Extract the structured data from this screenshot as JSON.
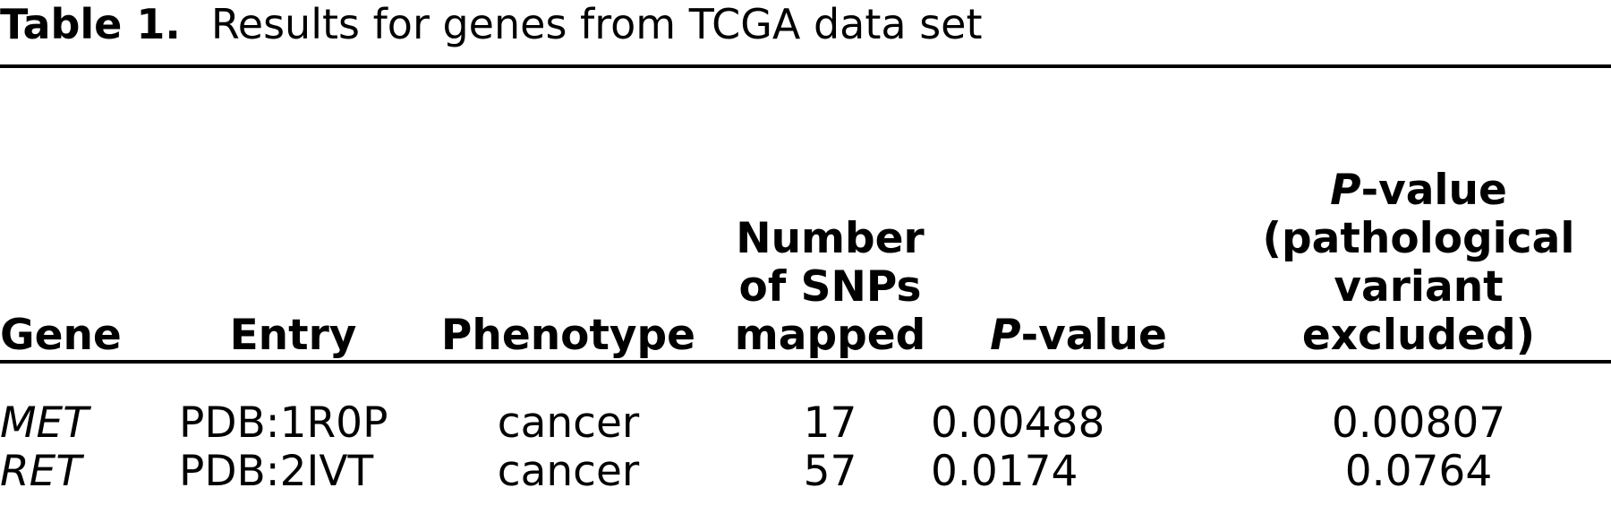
{
  "caption": {
    "label": "Table 1.",
    "title": "Results for genes from TCGA data set"
  },
  "table": {
    "headers": {
      "gene": "Gene",
      "entry": "Entry",
      "phenotype": "Phenotype",
      "snps_line1": "Number",
      "snps_line2": "of SNPs",
      "snps_line3": "mapped",
      "pvalue_italic": "P",
      "pvalue_rest": "-value",
      "pvalue_excl_italic": "P",
      "pvalue_excl_rest": "-value",
      "pvalue_excl_line2": "(pathological",
      "pvalue_excl_line3": "variant",
      "pvalue_excl_line4": "excluded)"
    },
    "rows": [
      {
        "gene": "MET",
        "entry": "PDB:1R0P",
        "phenotype": "cancer",
        "snps": "17",
        "pvalue": "0.00488",
        "pvalue_excluded": "0.00807"
      },
      {
        "gene": "RET",
        "entry": "PDB:2IVT",
        "phenotype": "cancer",
        "snps": "57",
        "pvalue": "0.0174",
        "pvalue_excluded": "0.0764"
      }
    ]
  }
}
